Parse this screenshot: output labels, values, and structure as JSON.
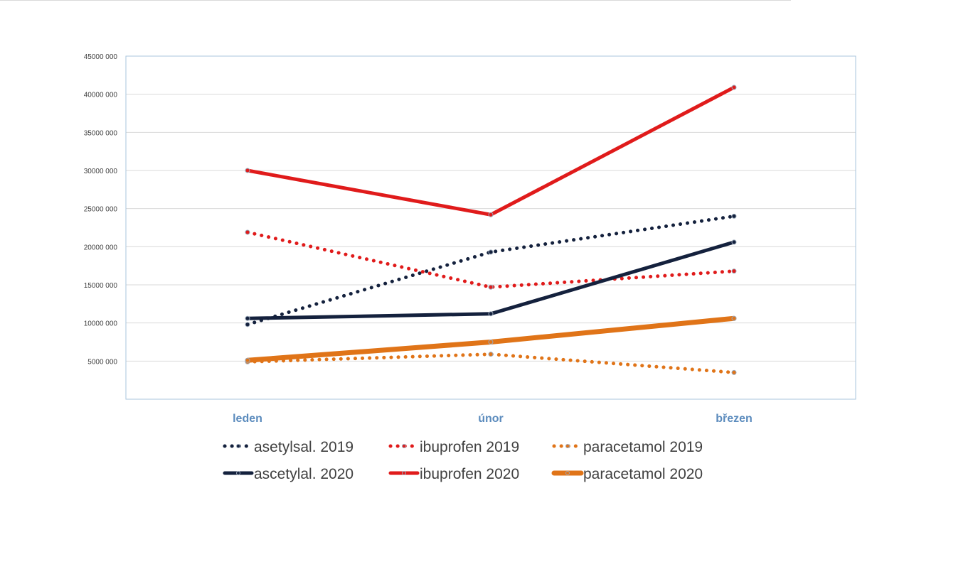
{
  "chart_data": {
    "type": "line",
    "title": "",
    "xlabel": "",
    "ylabel": "",
    "categories": [
      "leden",
      "únor",
      "březen"
    ],
    "ylim": [
      0,
      45000000
    ],
    "yticks": [
      5000000,
      10000000,
      15000000,
      20000000,
      25000000,
      30000000,
      35000000,
      40000000,
      45000000
    ],
    "ytick_labels": [
      "5000 000",
      "10000 000",
      "15000 000",
      "20000 000",
      "25000 000",
      "30000 000",
      "35000 000",
      "40000 000",
      "45000 000"
    ],
    "grid": true,
    "legend_position": "bottom",
    "series": [
      {
        "name": "asetylsal. 2019",
        "values": [
          9800000,
          19300000,
          24000000
        ],
        "color": "#14213d",
        "style": "dotted"
      },
      {
        "name": "ibuprofen 2019",
        "values": [
          21900000,
          14700000,
          16800000
        ],
        "color": "#e01b1b",
        "style": "dotted"
      },
      {
        "name": "paracetamol 2019",
        "values": [
          4900000,
          5900000,
          3500000
        ],
        "color": "#e07418",
        "style": "dotted"
      },
      {
        "name": "ascetylal. 2020",
        "values": [
          10600000,
          11200000,
          20600000
        ],
        "color": "#14213d",
        "style": "solid"
      },
      {
        "name": "ibuprofen 2020",
        "values": [
          30000000,
          24200000,
          40900000
        ],
        "color": "#e01b1b",
        "style": "solid"
      },
      {
        "name": "paracetamol 2020",
        "values": [
          5100000,
          7500000,
          10600000
        ],
        "color": "#e07418",
        "style": "solid"
      }
    ]
  }
}
